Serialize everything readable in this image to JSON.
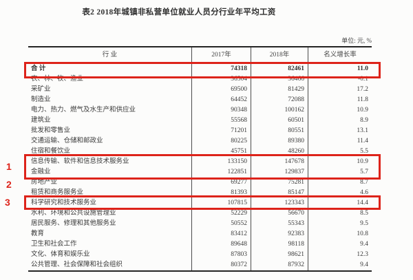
{
  "page": {
    "title": "表2  2018年城镇非私营单位就业人员分行业年平均工资",
    "unit_note": "单位: 元, %"
  },
  "table": {
    "columns": {
      "industry": "行  业",
      "y2017": "2017年",
      "y2018": "2018年",
      "growth": "名义增长率"
    },
    "rows": [
      {
        "industry": "合  计",
        "y2017": "74318",
        "y2018": "82461",
        "growth": "11.0"
      },
      {
        "industry": "农、林、牧、渔业",
        "y2017": "36504",
        "y2018": "36466",
        "growth": "-0.1"
      },
      {
        "industry": "采矿业",
        "y2017": "69500",
        "y2018": "81429",
        "growth": "17.2"
      },
      {
        "industry": "制造业",
        "y2017": "64452",
        "y2018": "72088",
        "growth": "11.8"
      },
      {
        "industry": "电力、热力、燃气及水生产和供应业",
        "y2017": "90348",
        "y2018": "100162",
        "growth": "10.9"
      },
      {
        "industry": "建筑业",
        "y2017": "55568",
        "y2018": "60501",
        "growth": "8.9"
      },
      {
        "industry": "批发和零售业",
        "y2017": "71201",
        "y2018": "80551",
        "growth": "13.1"
      },
      {
        "industry": "交通运输、仓储和邮政业",
        "y2017": "80225",
        "y2018": "89380",
        "growth": "11.4"
      },
      {
        "industry": "住宿和餐饮业",
        "y2017": "45751",
        "y2018": "48260",
        "growth": "5.5"
      },
      {
        "industry": "信息传输、软件和信息技术服务业",
        "y2017": "133150",
        "y2018": "147678",
        "growth": "10.9"
      },
      {
        "industry": "金融业",
        "y2017": "122851",
        "y2018": "129837",
        "growth": "5.7"
      },
      {
        "industry": "房地产业",
        "y2017": "69277",
        "y2018": "75281",
        "growth": "8.7"
      },
      {
        "industry": "租赁和商务服务业",
        "y2017": "81393",
        "y2018": "85147",
        "growth": "4.6"
      },
      {
        "industry": "科学研究和技术服务业",
        "y2017": "107815",
        "y2018": "123343",
        "growth": "14.4"
      },
      {
        "industry": "水利、环境和公共设施管理业",
        "y2017": "52229",
        "y2018": "56670",
        "growth": "8.5"
      },
      {
        "industry": "居民服务、修理和其他服务业",
        "y2017": "50552",
        "y2018": "55343",
        "growth": "9.5"
      },
      {
        "industry": "教育",
        "y2017": "83412",
        "y2018": "92383",
        "growth": "10.8"
      },
      {
        "industry": "卫生和社会工作",
        "y2017": "89648",
        "y2018": "98118",
        "growth": "9.4"
      },
      {
        "industry": "文化、体育和娱乐业",
        "y2017": "87803",
        "y2018": "98621",
        "growth": "12.3"
      },
      {
        "industry": "公共管理、社会保障和社会组织",
        "y2017": "80372",
        "y2018": "87932",
        "growth": "9.4"
      }
    ]
  },
  "annotations": {
    "highlight_color": "#dd231a",
    "marker_1": "1",
    "marker_2": "2",
    "marker_3": "3"
  }
}
